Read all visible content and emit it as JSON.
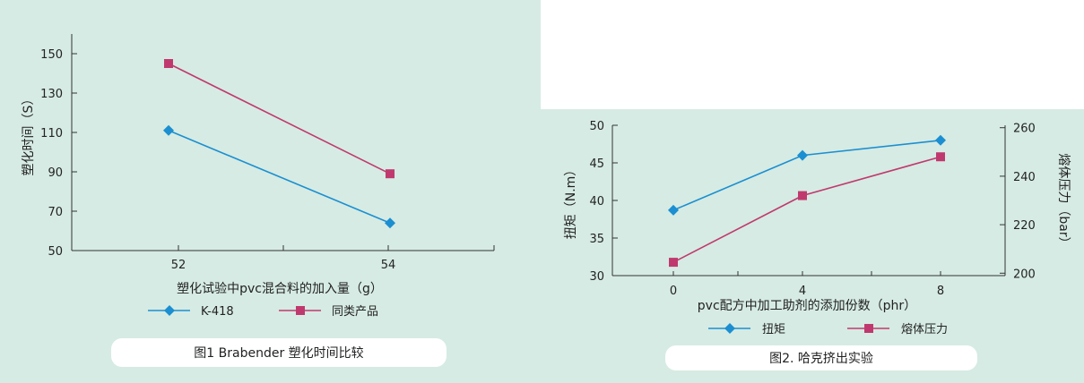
{
  "chart_data": [
    {
      "type": "line",
      "categories": [
        "52",
        "54"
      ],
      "xlabel": "塑化试验中pvc混合料的加入量（g）",
      "ylabel": "塑化时间（S）",
      "yticks": [
        50,
        70,
        90,
        110,
        130,
        150
      ],
      "ylim": [
        50,
        160
      ],
      "series": [
        {
          "name": "K-418",
          "values": [
            111,
            64
          ],
          "color": "#1b8fd1",
          "marker": "diamond"
        },
        {
          "name": "同类产品",
          "values": [
            145,
            89
          ],
          "color": "#c0396e",
          "marker": "square"
        }
      ],
      "caption": "图1 Brabender 塑化时间比较"
    },
    {
      "type": "line",
      "categories": [
        "0",
        "4",
        "8"
      ],
      "xlabel": "pvc配方中加工助剂的添加份数（phr）",
      "ylabel": "扭矩（N.m）",
      "y2label": "熔体压力（bar）",
      "yticks": [
        30,
        35,
        40,
        45,
        50
      ],
      "ylim": [
        30,
        50
      ],
      "y2ticks": [
        200,
        220,
        240,
        260
      ],
      "y2lim": [
        199,
        261
      ],
      "series": [
        {
          "name": "扭矩",
          "axis": "left",
          "values": [
            38.7,
            46,
            48
          ],
          "color": "#1b8fd1",
          "marker": "diamond"
        },
        {
          "name": "熔体压力",
          "axis": "right",
          "values": [
            204.5,
            232,
            248
          ],
          "color": "#c0396e",
          "marker": "square"
        }
      ],
      "caption": "图2. 哈克挤出实验"
    }
  ]
}
